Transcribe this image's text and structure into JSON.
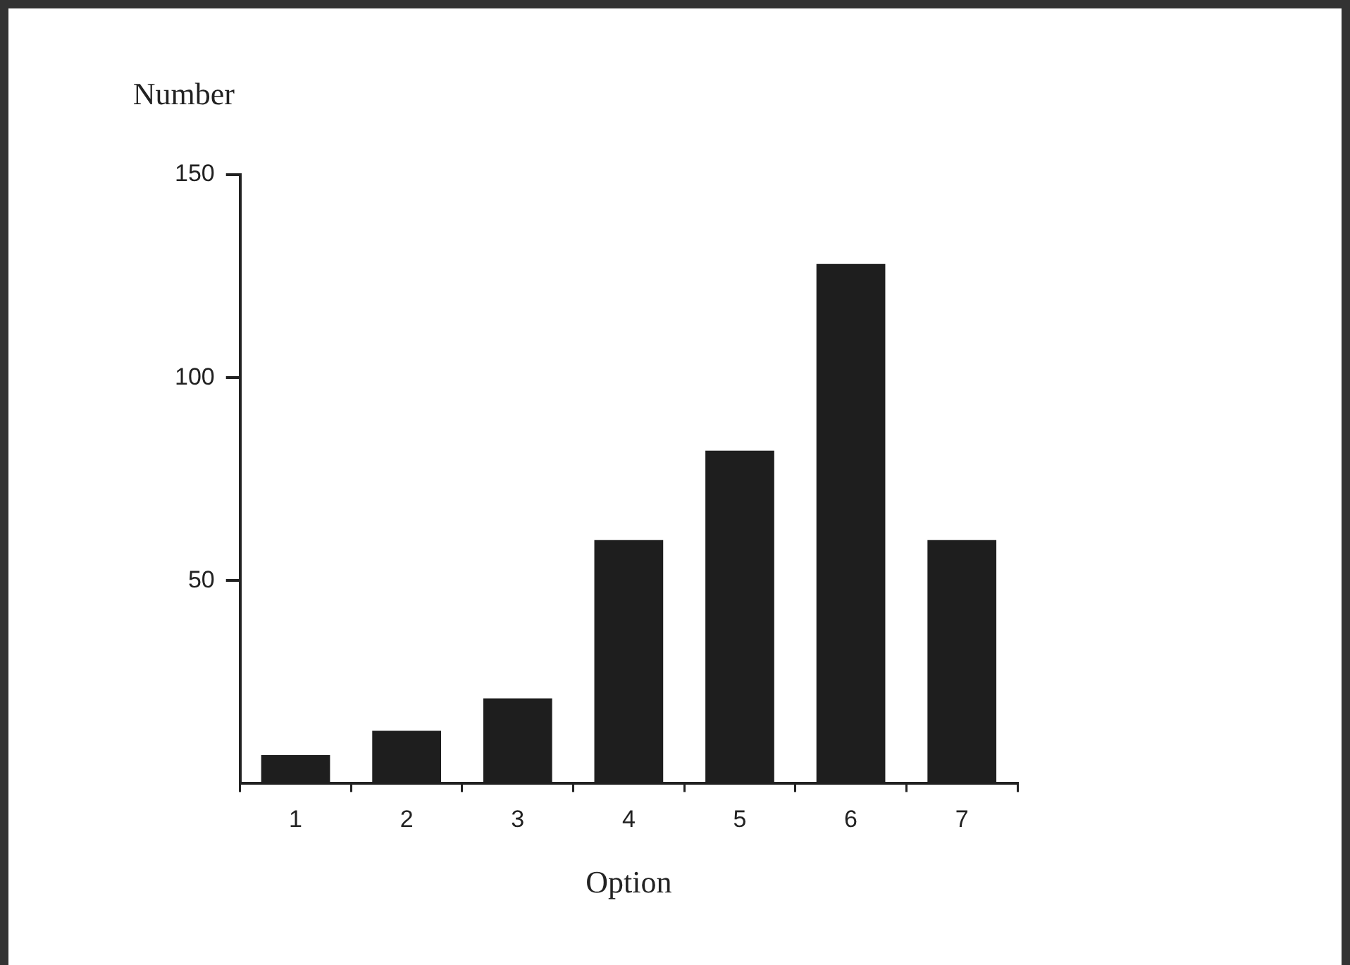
{
  "chart_data": {
    "type": "bar",
    "xlabel": "Option",
    "ylabel": "Number",
    "categories": [
      "1",
      "2",
      "3",
      "4",
      "5",
      "6",
      "7"
    ],
    "values": [
      7,
      13,
      21,
      60,
      82,
      128,
      60
    ],
    "color": "#1e1e1e",
    "ylim": [
      0,
      150
    ],
    "yticks": [
      50,
      100,
      150
    ],
    "grid": false,
    "legend": false
  }
}
